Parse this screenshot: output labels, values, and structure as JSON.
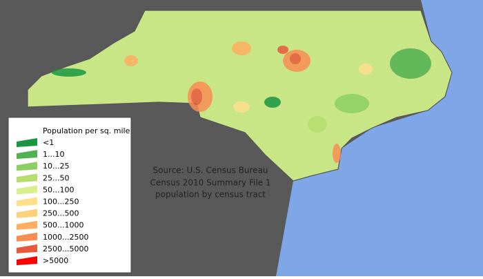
{
  "legend": {
    "title": "Population per sq. mile",
    "items": [
      {
        "label": "<1",
        "color": "#1a9641"
      },
      {
        "label": "1...10",
        "color": "#52b151"
      },
      {
        "label": "10...25",
        "color": "#8ccf63"
      },
      {
        "label": "25...50",
        "color": "#b5de6e"
      },
      {
        "label": "50...100",
        "color": "#d9ef8b"
      },
      {
        "label": "100...250",
        "color": "#fee08b"
      },
      {
        "label": "250...500",
        "color": "#fdd17c"
      },
      {
        "label": "500...1000",
        "color": "#fdae61"
      },
      {
        "label": "1000...2500",
        "color": "#f88d52"
      },
      {
        "label": "2500...5000",
        "color": "#e8593b"
      },
      {
        "label": ">5000",
        "color": "#ff0000"
      }
    ]
  },
  "source": [
    "Source: U.S. Census Bureau",
    "Census 2010 Summary File 1",
    "population by census tract"
  ]
}
